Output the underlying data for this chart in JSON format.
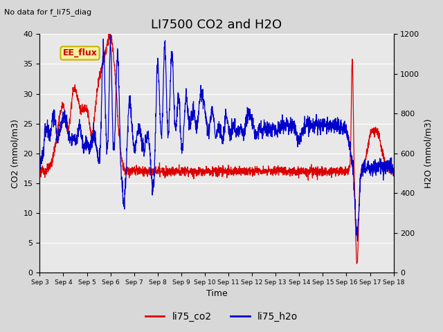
{
  "title": "LI7500 CO2 and H2O",
  "subtitle": "No data for f_li75_diag",
  "xlabel": "Time",
  "ylabel_left": "CO2 (mmol/m3)",
  "ylabel_right": "H2O (mmol/m3)",
  "ylim_left": [
    0,
    40
  ],
  "ylim_right": [
    0,
    1200
  ],
  "yticks_left": [
    0,
    5,
    10,
    15,
    20,
    25,
    30,
    35,
    40
  ],
  "yticks_right": [
    0,
    200,
    400,
    600,
    800,
    1000,
    1200
  ],
  "annotation_box": "EE_flux",
  "annotation_box_bg": "#f5f0a0",
  "annotation_box_edge": "#c8b400",
  "annotation_box_text_color": "#cc0000",
  "co2_color": "#dd0000",
  "h2o_color": "#0000cc",
  "fig_bg_color": "#d8d8d8",
  "plot_bg_color": "#e8e8e8",
  "grid_color": "#ffffff",
  "legend_co2": "li75_co2",
  "legend_h2o": "li75_h2o",
  "xticklabels": [
    "Sep 3",
    "Sep 4",
    "Sep 5",
    "Sep 6",
    "Sep 7",
    "Sep 8",
    "Sep 9",
    "Sep 10",
    "Sep 11",
    "Sep 12",
    "Sep 13",
    "Sep 14",
    "Sep 15",
    "Sep 16",
    "Sep 17",
    "Sep 18"
  ],
  "title_fontsize": 13,
  "axis_fontsize": 9,
  "tick_fontsize": 8,
  "legend_fontsize": 10
}
